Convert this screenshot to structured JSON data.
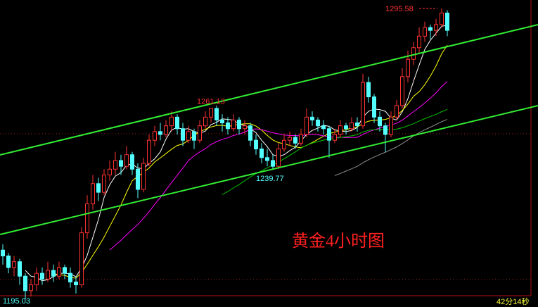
{
  "chart_data": {
    "type": "candlestick",
    "title": "黄金4小时图",
    "countdown": "42分14秒",
    "up_color": "#ff3232",
    "down_color": "#54ffff",
    "ylim": [
      1193.8,
      1298.5
    ],
    "ohlc": [
      [
        1212,
        1214,
        1207,
        1210
      ],
      [
        1210,
        1211,
        1204,
        1206
      ],
      [
        1206,
        1210,
        1203,
        1208
      ],
      [
        1208,
        1209,
        1200,
        1203
      ],
      [
        1203,
        1204,
        1195.03,
        1198
      ],
      [
        1198,
        1202,
        1196,
        1200
      ],
      [
        1200,
        1206,
        1198,
        1204
      ],
      [
        1204,
        1206,
        1200,
        1202
      ],
      [
        1202,
        1208,
        1201,
        1205
      ],
      [
        1205,
        1207,
        1201,
        1203
      ],
      [
        1203,
        1208,
        1202,
        1206
      ],
      [
        1206,
        1207,
        1202,
        1204
      ],
      [
        1204,
        1206,
        1199,
        1201
      ],
      [
        1201,
        1203,
        1197,
        1200
      ],
      [
        1200,
        1220,
        1199,
        1218
      ],
      [
        1218,
        1231,
        1216,
        1228
      ],
      [
        1228,
        1238,
        1226,
        1235
      ],
      [
        1235,
        1237,
        1229,
        1232
      ],
      [
        1232,
        1240,
        1231,
        1238
      ],
      [
        1238,
        1243,
        1236,
        1240
      ],
      [
        1240,
        1246,
        1238,
        1243
      ],
      [
        1243,
        1245,
        1238,
        1241
      ],
      [
        1241,
        1248,
        1240,
        1245
      ],
      [
        1245,
        1246,
        1238,
        1240
      ],
      [
        1240,
        1242,
        1230,
        1233
      ],
      [
        1233,
        1244,
        1232,
        1242
      ],
      [
        1242,
        1252,
        1241,
        1250
      ],
      [
        1250,
        1255,
        1248,
        1253
      ],
      [
        1253,
        1256,
        1250,
        1252
      ],
      [
        1252,
        1257,
        1251,
        1255
      ],
      [
        1255,
        1260,
        1253,
        1258
      ],
      [
        1258,
        1259,
        1252,
        1254
      ],
      [
        1254,
        1256,
        1248,
        1250
      ],
      [
        1250,
        1255,
        1249,
        1253
      ],
      [
        1253,
        1254,
        1247,
        1250
      ],
      [
        1250,
        1257,
        1249,
        1255
      ],
      [
        1255,
        1260,
        1254,
        1258
      ],
      [
        1258,
        1261.13,
        1256,
        1261
      ],
      [
        1261,
        1262,
        1255,
        1257
      ],
      [
        1257,
        1259,
        1253,
        1256
      ],
      [
        1256,
        1258,
        1252,
        1254
      ],
      [
        1254,
        1259,
        1253,
        1257
      ],
      [
        1257,
        1258,
        1252,
        1254
      ],
      [
        1254,
        1257,
        1252,
        1255
      ],
      [
        1255,
        1256,
        1248,
        1250
      ],
      [
        1250,
        1252,
        1245,
        1247
      ],
      [
        1247,
        1249,
        1242,
        1244
      ],
      [
        1244,
        1247,
        1241,
        1243
      ],
      [
        1243,
        1245,
        1239.77,
        1241
      ],
      [
        1241,
        1249,
        1240,
        1247
      ],
      [
        1247,
        1252,
        1246,
        1250
      ],
      [
        1250,
        1253,
        1248,
        1251
      ],
      [
        1251,
        1252,
        1247,
        1249
      ],
      [
        1249,
        1254,
        1248,
        1252
      ],
      [
        1252,
        1261,
        1251,
        1258
      ],
      [
        1258,
        1260,
        1255,
        1257
      ],
      [
        1257,
        1258,
        1253,
        1255
      ],
      [
        1255,
        1257,
        1252,
        1254
      ],
      [
        1254,
        1255,
        1244,
        1250
      ],
      [
        1250,
        1254,
        1249,
        1252
      ],
      [
        1252,
        1257,
        1251,
        1255
      ],
      [
        1255,
        1256,
        1252,
        1254
      ],
      [
        1254,
        1258,
        1253,
        1256
      ],
      [
        1256,
        1258,
        1253,
        1255
      ],
      [
        1255,
        1273,
        1254,
        1270
      ],
      [
        1270,
        1272,
        1263,
        1265
      ],
      [
        1265,
        1266,
        1256,
        1258
      ],
      [
        1258,
        1260,
        1253,
        1255
      ],
      [
        1255,
        1256,
        1246,
        1252
      ],
      [
        1252,
        1260,
        1251,
        1258
      ],
      [
        1258,
        1264,
        1257,
        1262
      ],
      [
        1262,
        1275,
        1261,
        1272
      ],
      [
        1272,
        1281,
        1270,
        1278
      ],
      [
        1278,
        1284,
        1276,
        1282
      ],
      [
        1282,
        1289,
        1280,
        1286
      ],
      [
        1286,
        1291,
        1284,
        1289
      ],
      [
        1289,
        1290,
        1285,
        1288
      ],
      [
        1288,
        1292,
        1286,
        1290
      ],
      [
        1290,
        1295.58,
        1289,
        1294
      ],
      [
        1294,
        1295,
        1286,
        1288
      ]
    ],
    "moving_averages": [
      {
        "period": 5,
        "color": "#ffffff"
      },
      {
        "period": 10,
        "color": "#ffff00"
      },
      {
        "period": 20,
        "color": "#ff00ff"
      },
      {
        "period": 40,
        "color": "#00c000"
      },
      {
        "period": 60,
        "color": "#909090"
      }
    ]
  }
}
